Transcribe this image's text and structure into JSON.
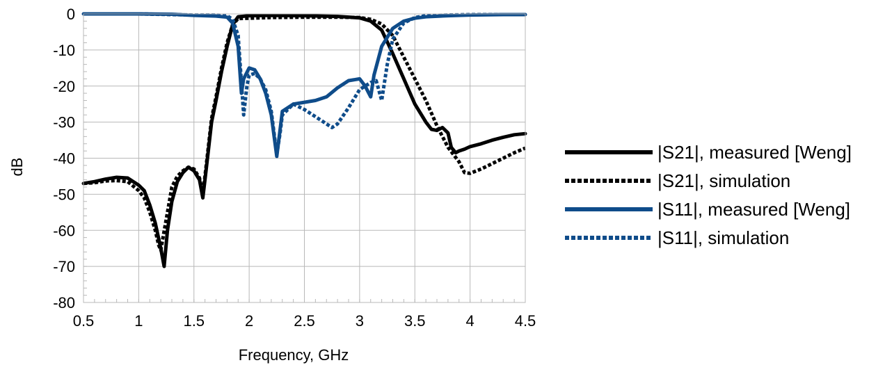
{
  "chart_data": {
    "type": "line",
    "title": "",
    "xlabel": "Frequency, GHz",
    "ylabel": "dB",
    "xlim": [
      0.5,
      4.5
    ],
    "ylim": [
      -80,
      0
    ],
    "xticks": [
      "0.5",
      "1",
      "1.5",
      "2",
      "2.5",
      "3",
      "3.5",
      "4",
      "4.5"
    ],
    "yticks": [
      "0",
      "-10",
      "-20",
      "-30",
      "-40",
      "-50",
      "-60",
      "-70",
      "-80"
    ],
    "grid": true,
    "legend_position": "right",
    "series": [
      {
        "name": "|S21|, measured [Weng]",
        "color": "#000000",
        "dash": "solid",
        "points": [
          [
            0.5,
            -47
          ],
          [
            0.6,
            -46.5
          ],
          [
            0.7,
            -45.8
          ],
          [
            0.8,
            -45.3
          ],
          [
            0.9,
            -45.5
          ],
          [
            1.0,
            -47.5
          ],
          [
            1.05,
            -49
          ],
          [
            1.1,
            -53
          ],
          [
            1.15,
            -58
          ],
          [
            1.2,
            -65
          ],
          [
            1.23,
            -70
          ],
          [
            1.26,
            -60
          ],
          [
            1.3,
            -52
          ],
          [
            1.35,
            -46.5
          ],
          [
            1.4,
            -44
          ],
          [
            1.45,
            -42.5
          ],
          [
            1.5,
            -43.5
          ],
          [
            1.55,
            -46
          ],
          [
            1.58,
            -51
          ],
          [
            1.6,
            -46
          ],
          [
            1.63,
            -38
          ],
          [
            1.66,
            -30
          ],
          [
            1.7,
            -24
          ],
          [
            1.75,
            -16
          ],
          [
            1.8,
            -9
          ],
          [
            1.85,
            -3
          ],
          [
            1.9,
            -0.8
          ],
          [
            2.0,
            -0.5
          ],
          [
            2.2,
            -0.4
          ],
          [
            2.5,
            -0.5
          ],
          [
            2.8,
            -0.7
          ],
          [
            3.0,
            -1.1
          ],
          [
            3.1,
            -2
          ],
          [
            3.2,
            -4.5
          ],
          [
            3.3,
            -11
          ],
          [
            3.4,
            -18
          ],
          [
            3.5,
            -25
          ],
          [
            3.6,
            -30
          ],
          [
            3.65,
            -32
          ],
          [
            3.7,
            -32.3
          ],
          [
            3.75,
            -31.5
          ],
          [
            3.8,
            -33
          ],
          [
            3.83,
            -37
          ],
          [
            3.87,
            -38.5
          ],
          [
            3.9,
            -38
          ],
          [
            3.95,
            -37.5
          ],
          [
            4.0,
            -36.8
          ],
          [
            4.1,
            -36
          ],
          [
            4.2,
            -35
          ],
          [
            4.3,
            -34.2
          ],
          [
            4.4,
            -33.5
          ],
          [
            4.5,
            -33.2
          ]
        ]
      },
      {
        "name": "|S21|, simulation",
        "color": "#000000",
        "dash": "dotted",
        "points": [
          [
            0.5,
            -47
          ],
          [
            0.6,
            -46.8
          ],
          [
            0.7,
            -46.3
          ],
          [
            0.8,
            -46.2
          ],
          [
            0.9,
            -46.5
          ],
          [
            1.0,
            -49
          ],
          [
            1.05,
            -51
          ],
          [
            1.1,
            -55
          ],
          [
            1.15,
            -60
          ],
          [
            1.18,
            -64
          ],
          [
            1.2,
            -65.5
          ],
          [
            1.22,
            -62
          ],
          [
            1.26,
            -55
          ],
          [
            1.3,
            -48
          ],
          [
            1.35,
            -45
          ],
          [
            1.4,
            -43.5
          ],
          [
            1.45,
            -42.5
          ],
          [
            1.5,
            -43
          ],
          [
            1.55,
            -45.5
          ],
          [
            1.58,
            -50
          ],
          [
            1.6,
            -45
          ],
          [
            1.63,
            -37
          ],
          [
            1.66,
            -29
          ],
          [
            1.7,
            -23
          ],
          [
            1.75,
            -15
          ],
          [
            1.8,
            -8
          ],
          [
            1.85,
            -3
          ],
          [
            1.9,
            -1.3
          ],
          [
            2.0,
            -1.2
          ],
          [
            2.2,
            -1.0
          ],
          [
            2.5,
            -0.9
          ],
          [
            2.8,
            -0.9
          ],
          [
            3.0,
            -1.0
          ],
          [
            3.1,
            -1.5
          ],
          [
            3.2,
            -2.8
          ],
          [
            3.3,
            -6
          ],
          [
            3.4,
            -12
          ],
          [
            3.5,
            -18
          ],
          [
            3.6,
            -24
          ],
          [
            3.7,
            -31
          ],
          [
            3.8,
            -37
          ],
          [
            3.85,
            -39
          ],
          [
            3.9,
            -41
          ],
          [
            3.95,
            -44
          ],
          [
            4.0,
            -44.2
          ],
          [
            4.1,
            -43
          ],
          [
            4.2,
            -41.5
          ],
          [
            4.3,
            -40
          ],
          [
            4.4,
            -38.5
          ],
          [
            4.5,
            -37.2
          ]
        ]
      },
      {
        "name": "|S11|, measured [Weng]",
        "color": "#0f4c8a",
        "dash": "solid",
        "points": [
          [
            0.5,
            0
          ],
          [
            1.0,
            0
          ],
          [
            1.3,
            -0.1
          ],
          [
            1.5,
            -0.4
          ],
          [
            1.7,
            -0.6
          ],
          [
            1.8,
            -0.9
          ],
          [
            1.85,
            -2.5
          ],
          [
            1.9,
            -9
          ],
          [
            1.93,
            -22
          ],
          [
            1.95,
            -18
          ],
          [
            2.0,
            -15
          ],
          [
            2.05,
            -15.5
          ],
          [
            2.1,
            -18
          ],
          [
            2.15,
            -22
          ],
          [
            2.2,
            -28
          ],
          [
            2.25,
            -39.5
          ],
          [
            2.28,
            -32
          ],
          [
            2.3,
            -27
          ],
          [
            2.4,
            -25
          ],
          [
            2.5,
            -24.5
          ],
          [
            2.6,
            -24
          ],
          [
            2.7,
            -23
          ],
          [
            2.8,
            -20.5
          ],
          [
            2.9,
            -18.5
          ],
          [
            3.0,
            -18
          ],
          [
            3.05,
            -20
          ],
          [
            3.1,
            -23
          ],
          [
            3.13,
            -17
          ],
          [
            3.2,
            -9
          ],
          [
            3.3,
            -4
          ],
          [
            3.4,
            -2
          ],
          [
            3.5,
            -1.2
          ],
          [
            3.6,
            -0.8
          ],
          [
            3.8,
            -0.5
          ],
          [
            4.0,
            -0.3
          ],
          [
            4.3,
            -0.2
          ],
          [
            4.5,
            -0.2
          ]
        ]
      },
      {
        "name": "|S11|, simulation",
        "color": "#0f4c8a",
        "dash": "dotted",
        "points": [
          [
            0.5,
            0
          ],
          [
            1.0,
            0
          ],
          [
            1.3,
            -0.2
          ],
          [
            1.5,
            -0.3
          ],
          [
            1.7,
            -0.3
          ],
          [
            1.8,
            -0.5
          ],
          [
            1.85,
            -1.5
          ],
          [
            1.9,
            -6
          ],
          [
            1.95,
            -28
          ],
          [
            1.98,
            -20
          ],
          [
            2.0,
            -17
          ],
          [
            2.05,
            -16.5
          ],
          [
            2.1,
            -18
          ],
          [
            2.15,
            -21
          ],
          [
            2.2,
            -27
          ],
          [
            2.25,
            -39
          ],
          [
            2.28,
            -33
          ],
          [
            2.3,
            -28
          ],
          [
            2.4,
            -25
          ],
          [
            2.5,
            -26.5
          ],
          [
            2.6,
            -28.5
          ],
          [
            2.7,
            -30.5
          ],
          [
            2.75,
            -31.5
          ],
          [
            2.8,
            -30.5
          ],
          [
            2.9,
            -26
          ],
          [
            3.0,
            -21
          ],
          [
            3.1,
            -19
          ],
          [
            3.15,
            -18.5
          ],
          [
            3.2,
            -24
          ],
          [
            3.25,
            -14
          ],
          [
            3.3,
            -7
          ],
          [
            3.4,
            -2.5
          ],
          [
            3.5,
            -1
          ],
          [
            3.6,
            -0.5
          ],
          [
            3.8,
            -0.3
          ],
          [
            4.0,
            -0.2
          ],
          [
            4.5,
            -0.2
          ]
        ]
      }
    ]
  }
}
